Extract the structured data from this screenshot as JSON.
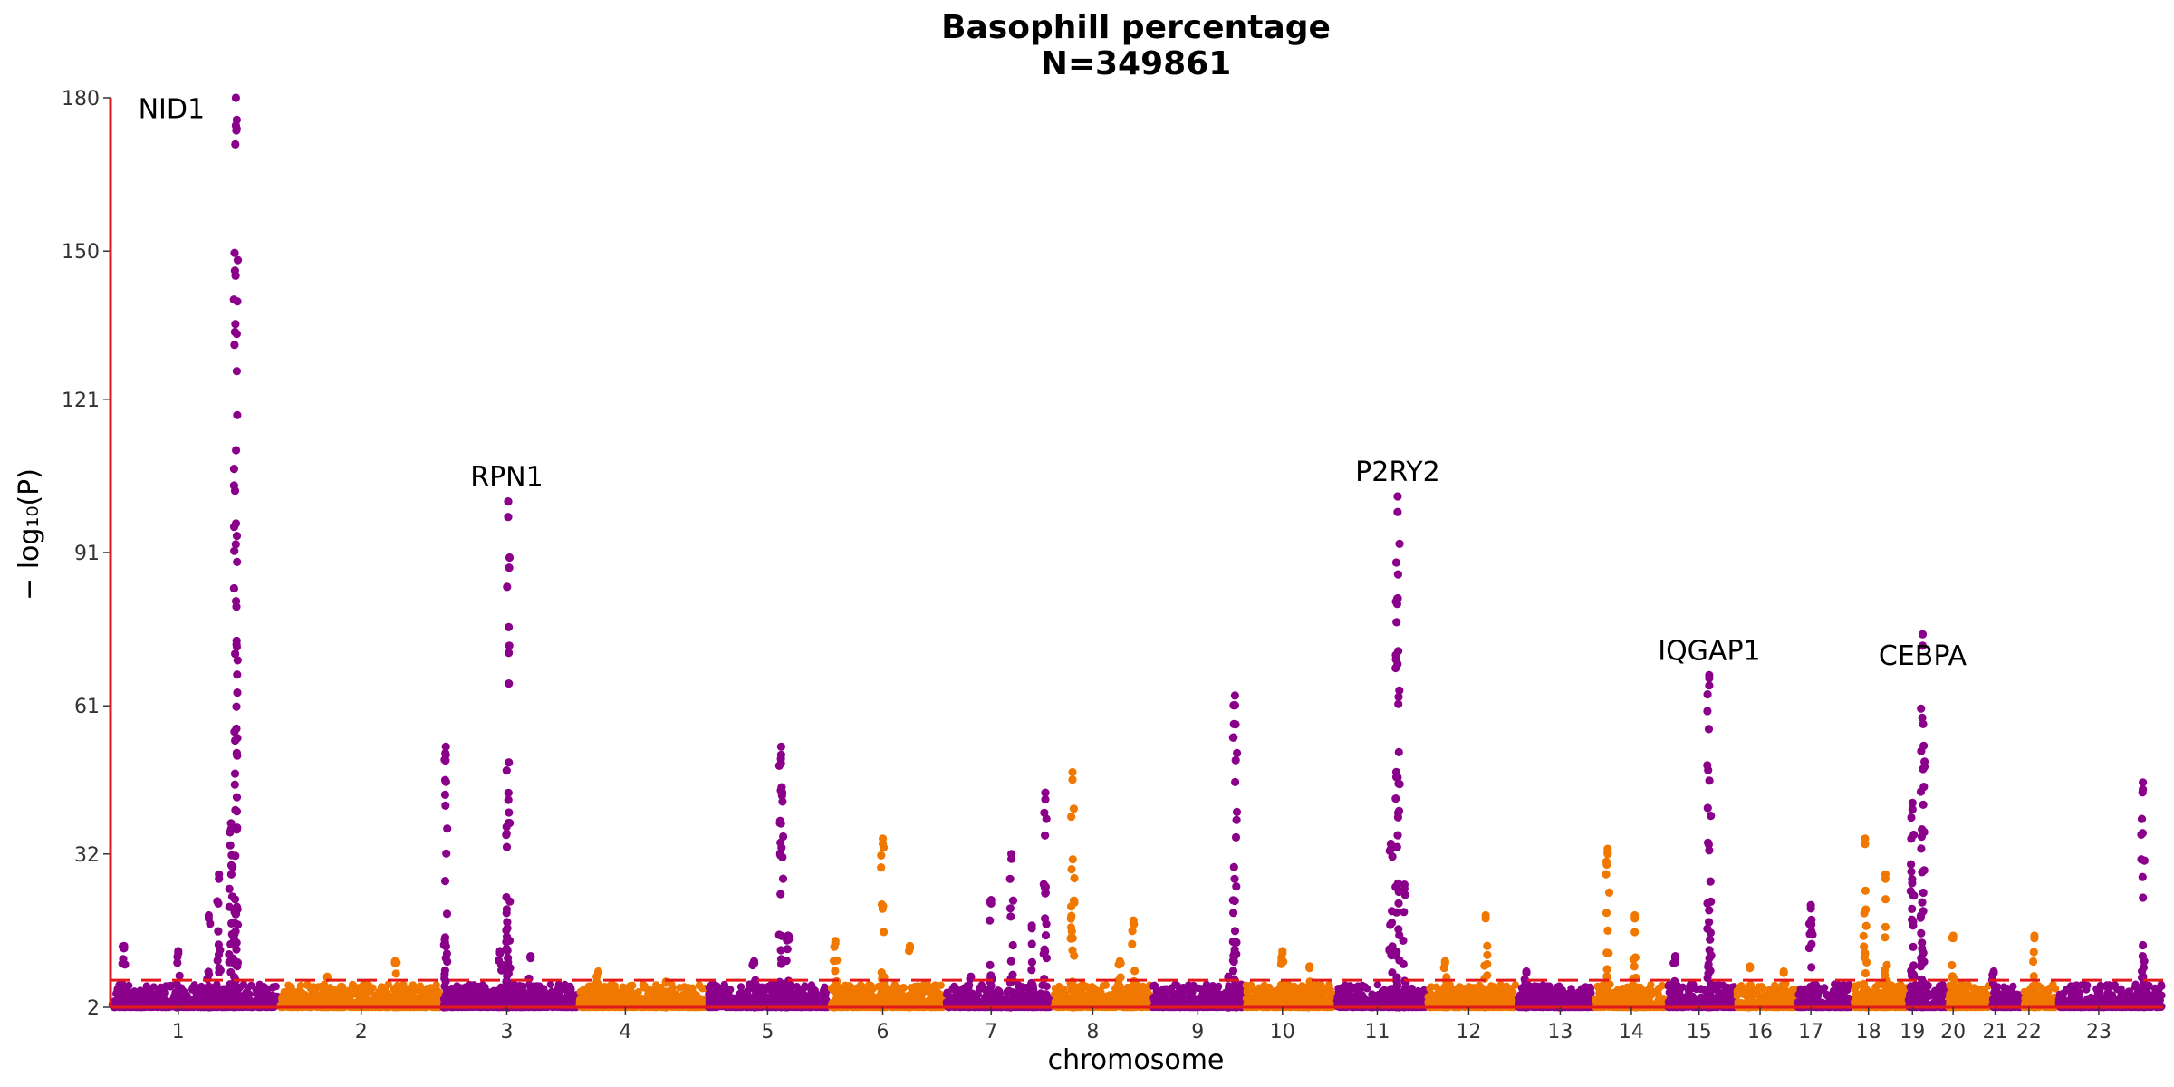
{
  "chart_data": {
    "type": "scatter",
    "title": "Basophill percentage",
    "subtitle": "N=349861",
    "xlabel": "chromosome",
    "ylabel": "− log₁₀(P)",
    "ylim": [
      2,
      180
    ],
    "yticks": [
      2,
      32,
      61,
      91,
      121,
      150,
      180
    ],
    "significance_line": 7.3,
    "colors": {
      "odd": "#8B008B",
      "even": "#F07800",
      "axis": "#E31A1C",
      "threshold": "#E31A1C"
    },
    "chromosomes": [
      {
        "name": "1",
        "start": 0.0,
        "end": 2.49,
        "label_pos": 1.0
      },
      {
        "name": "2",
        "start": 2.49,
        "end": 4.91,
        "label_pos": 3.7
      },
      {
        "name": "3",
        "start": 4.91,
        "end": 6.9,
        "label_pos": 5.85
      },
      {
        "name": "4",
        "start": 6.9,
        "end": 8.8,
        "label_pos": 7.6
      },
      {
        "name": "5",
        "start": 8.8,
        "end": 10.61,
        "label_pos": 9.7
      },
      {
        "name": "6",
        "start": 10.61,
        "end": 12.32,
        "label_pos": 11.4
      },
      {
        "name": "7",
        "start": 12.32,
        "end": 13.91,
        "label_pos": 13.0
      },
      {
        "name": "8",
        "start": 13.91,
        "end": 15.36,
        "label_pos": 14.5
      },
      {
        "name": "9",
        "start": 15.36,
        "end": 16.74,
        "label_pos": 16.05
      },
      {
        "name": "10",
        "start": 16.74,
        "end": 18.08,
        "label_pos": 17.3
      },
      {
        "name": "11",
        "start": 18.08,
        "end": 19.43,
        "label_pos": 18.7
      },
      {
        "name": "12",
        "start": 19.43,
        "end": 20.76,
        "label_pos": 20.05
      },
      {
        "name": "13",
        "start": 20.76,
        "end": 21.9,
        "label_pos": 21.4
      },
      {
        "name": "14",
        "start": 21.9,
        "end": 22.97,
        "label_pos": 22.45
      },
      {
        "name": "15",
        "start": 22.97,
        "end": 23.99,
        "label_pos": 23.45
      },
      {
        "name": "16",
        "start": 23.99,
        "end": 24.89,
        "label_pos": 24.35
      },
      {
        "name": "17",
        "start": 24.89,
        "end": 25.72,
        "label_pos": 25.1
      },
      {
        "name": "18",
        "start": 25.72,
        "end": 26.52,
        "label_pos": 25.95
      },
      {
        "name": "19",
        "start": 26.52,
        "end": 27.11,
        "label_pos": 26.6
      },
      {
        "name": "20",
        "start": 27.11,
        "end": 27.75,
        "label_pos": 27.2
      },
      {
        "name": "21",
        "start": 27.75,
        "end": 28.22,
        "label_pos": 27.82
      },
      {
        "name": "22",
        "start": 28.22,
        "end": 28.73,
        "label_pos": 28.32
      },
      {
        "name": "23",
        "start": 28.73,
        "end": 30.3,
        "label_pos": 29.35
      }
    ],
    "background_peaks": [
      {
        "x": 0.2,
        "y": 14
      },
      {
        "x": 1.0,
        "y": 13
      },
      {
        "x": 1.6,
        "y": 28
      },
      {
        "x": 1.45,
        "y": 20
      },
      {
        "x": 3.2,
        "y": 8
      },
      {
        "x": 4.2,
        "y": 11
      },
      {
        "x": 5.75,
        "y": 13
      },
      {
        "x": 6.2,
        "y": 12
      },
      {
        "x": 7.2,
        "y": 9
      },
      {
        "x": 8.2,
        "y": 7
      },
      {
        "x": 9.5,
        "y": 11
      },
      {
        "x": 10.0,
        "y": 16
      },
      {
        "x": 10.7,
        "y": 15
      },
      {
        "x": 11.4,
        "y": 35
      },
      {
        "x": 11.8,
        "y": 14
      },
      {
        "x": 12.7,
        "y": 8
      },
      {
        "x": 13.0,
        "y": 23
      },
      {
        "x": 13.3,
        "y": 32
      },
      {
        "x": 13.6,
        "y": 18
      },
      {
        "x": 13.8,
        "y": 44
      },
      {
        "x": 14.9,
        "y": 11
      },
      {
        "x": 15.1,
        "y": 19
      },
      {
        "x": 16.5,
        "y": 8
      },
      {
        "x": 17.3,
        "y": 13
      },
      {
        "x": 17.7,
        "y": 10
      },
      {
        "x": 18.9,
        "y": 34
      },
      {
        "x": 19.1,
        "y": 26
      },
      {
        "x": 19.7,
        "y": 11
      },
      {
        "x": 20.3,
        "y": 20
      },
      {
        "x": 20.9,
        "y": 9
      },
      {
        "x": 21.4,
        "y": 5
      },
      {
        "x": 22.1,
        "y": 33
      },
      {
        "x": 22.5,
        "y": 20
      },
      {
        "x": 23.1,
        "y": 12
      },
      {
        "x": 24.2,
        "y": 10
      },
      {
        "x": 24.7,
        "y": 9
      },
      {
        "x": 25.1,
        "y": 22
      },
      {
        "x": 25.9,
        "y": 35
      },
      {
        "x": 26.2,
        "y": 28
      },
      {
        "x": 27.2,
        "y": 16
      },
      {
        "x": 27.8,
        "y": 9
      },
      {
        "x": 28.4,
        "y": 16
      },
      {
        "x": 30.0,
        "y": 46
      }
    ],
    "highlight_peaks": [
      {
        "x": 1.85,
        "y": 180,
        "gene": "NID1"
      },
      {
        "x": 5.87,
        "y": 101,
        "gene": "RPN1"
      },
      {
        "x": 19.0,
        "y": 102,
        "gene": "P2RY2"
      },
      {
        "x": 23.6,
        "y": 67,
        "gene": "IQGAP1"
      },
      {
        "x": 26.75,
        "y": 75,
        "gene": "CEBPA"
      },
      {
        "x": 16.6,
        "y": 63,
        "gene": ""
      },
      {
        "x": 9.9,
        "y": 53,
        "gene": ""
      },
      {
        "x": 4.95,
        "y": 53,
        "gene": ""
      },
      {
        "x": 14.2,
        "y": 48,
        "gene": ""
      },
      {
        "x": 1.78,
        "y": 38,
        "gene": ""
      },
      {
        "x": 26.6,
        "y": 42,
        "gene": ""
      }
    ],
    "gene_labels": [
      {
        "text": "NID1",
        "x": 0.9,
        "y": 176
      },
      {
        "text": "RPN1",
        "x": 5.85,
        "y": 104
      },
      {
        "text": "P2RY2",
        "x": 19.0,
        "y": 105
      },
      {
        "text": "IQGAP1",
        "x": 23.6,
        "y": 70
      },
      {
        "text": "CEBPA",
        "x": 26.75,
        "y": 69
      }
    ]
  }
}
